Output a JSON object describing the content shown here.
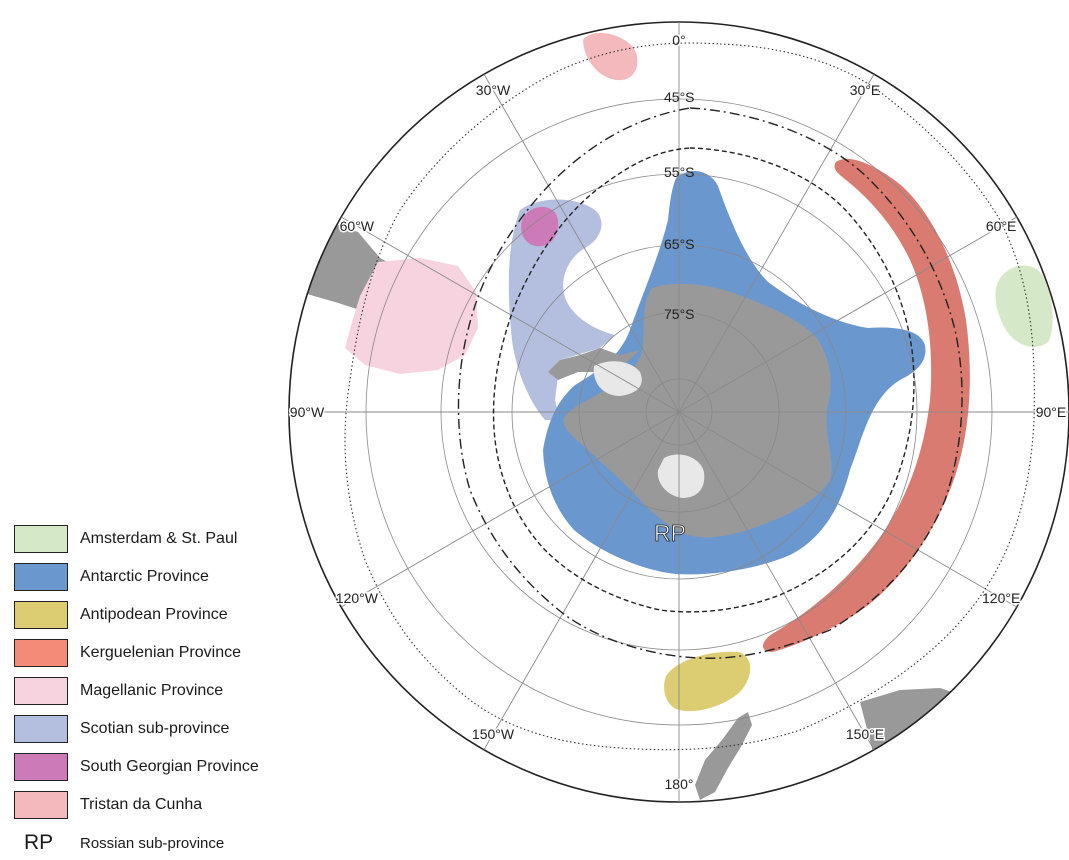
{
  "colors": {
    "amsterdam": "#d5e9c8",
    "antarctic": "#6b97cf",
    "antipodean": "#dccd72",
    "kerguelenian": "#d97b70",
    "magellanic": "#f7d2df",
    "scotian": "#b4bfdf",
    "south_georgian": "#cc7ab8",
    "tristan": "#f4b9bd",
    "land": "#999999",
    "ice": "#e8e8e8"
  },
  "map": {
    "longitude_labels": [
      {
        "label": "0°",
        "angle": 0
      },
      {
        "label": "30°E",
        "angle": 30
      },
      {
        "label": "60°E",
        "angle": 60
      },
      {
        "label": "90°E",
        "angle": 90
      },
      {
        "label": "120°E",
        "angle": 120
      },
      {
        "label": "150°E",
        "angle": 150
      },
      {
        "label": "180°",
        "angle": 180
      },
      {
        "label": "150°W",
        "angle": 210
      },
      {
        "label": "120°W",
        "angle": 240
      },
      {
        "label": "90°W",
        "angle": 270
      },
      {
        "label": "60°W",
        "angle": 300
      },
      {
        "label": "30°W",
        "angle": 330
      }
    ],
    "latitude_labels": [
      {
        "label": "45°S",
        "lat": 45
      },
      {
        "label": "55°S",
        "lat": 55
      },
      {
        "label": "65°S",
        "lat": 65
      },
      {
        "label": "75°S",
        "lat": 75
      }
    ],
    "rp_label": "RP"
  },
  "legend": {
    "items": [
      {
        "label": "Amsterdam & St. Paul",
        "color_key": "amsterdam"
      },
      {
        "label": "Antarctic Province",
        "color_key": "antarctic"
      },
      {
        "label": "Antipodean Province",
        "color_key": "antipodean"
      },
      {
        "label": "Kerguelenian Province",
        "color_key": "kerguelenian"
      },
      {
        "label": "Magellanic Province",
        "color_key": "magellanic"
      },
      {
        "label": "Scotian sub-province",
        "color_key": "scotian"
      },
      {
        "label": "South Georgian Province",
        "color_key": "south_georgian"
      },
      {
        "label": "Tristan da Cunha",
        "color_key": "tristan"
      }
    ],
    "rp_code": "RP",
    "rp_label": "Rossian sub-province"
  }
}
